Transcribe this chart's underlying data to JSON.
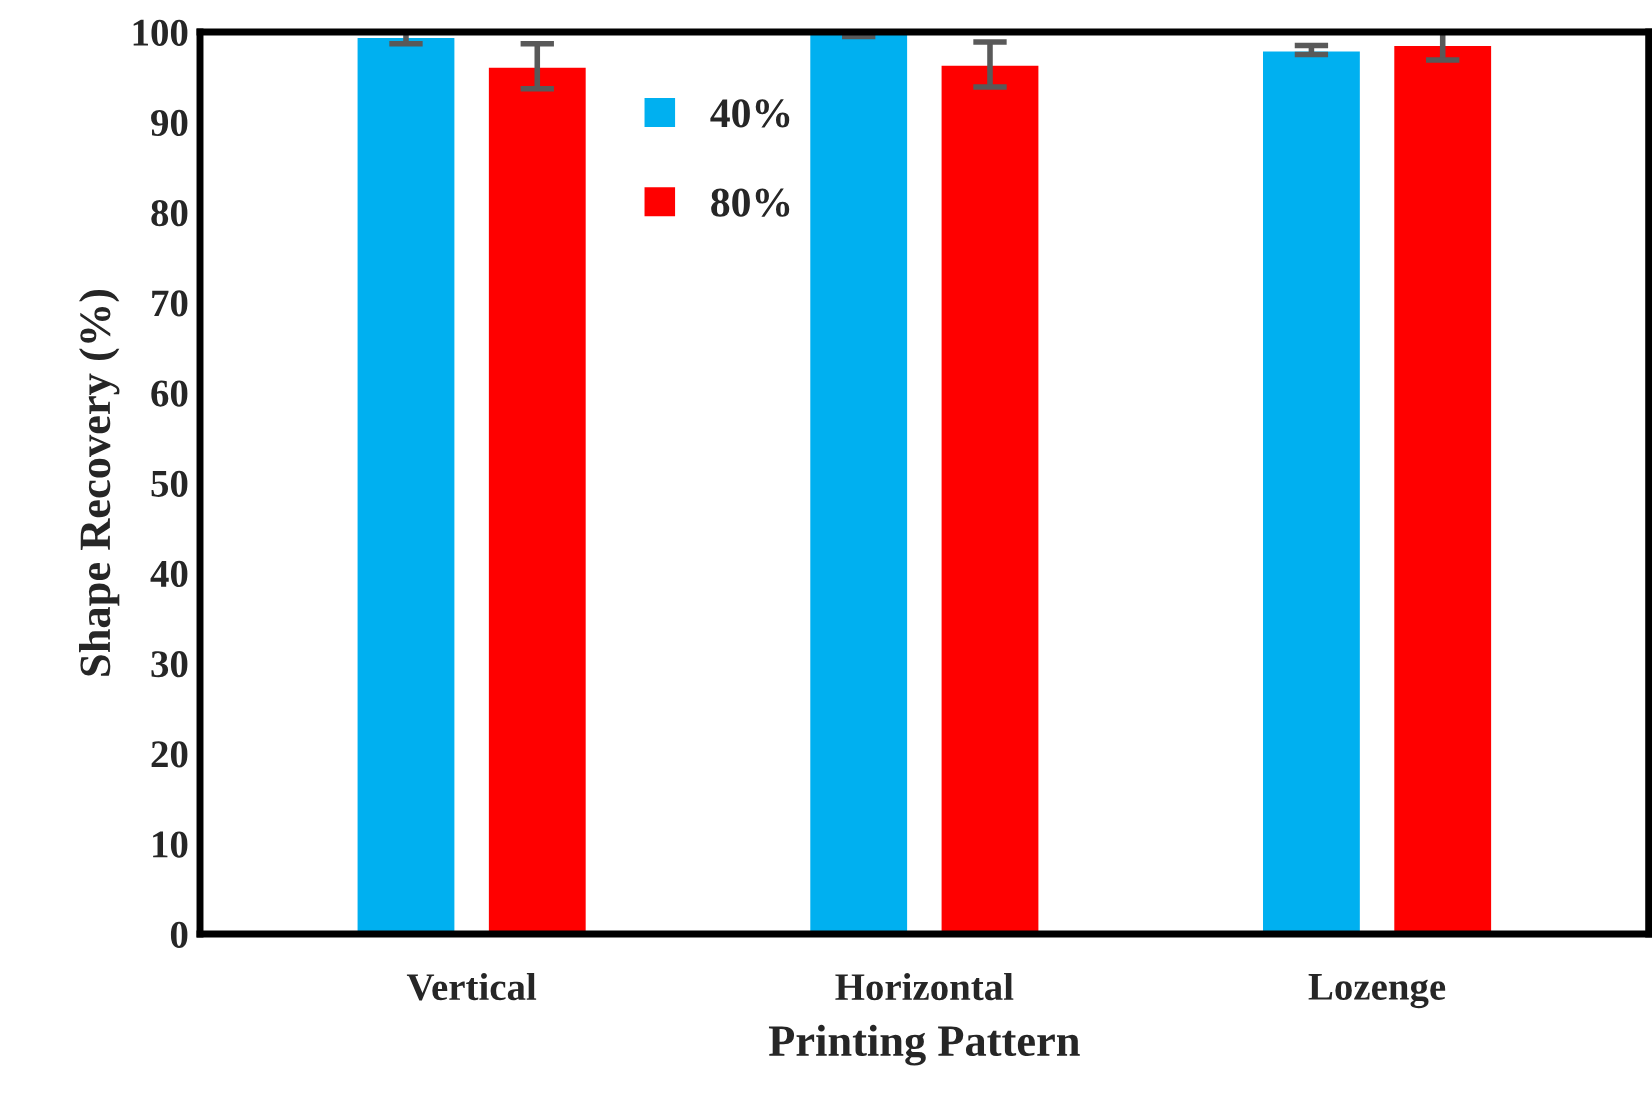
{
  "chart_data": {
    "type": "bar",
    "xlabel": "Printing Pattern",
    "ylabel": "Shape Recovery (%)",
    "categories": [
      "Vertical",
      "Horizontal",
      "Lozenge"
    ],
    "series": [
      {
        "name": "40%",
        "color": "#00b0f0",
        "values": [
          99.5,
          100,
          98
        ],
        "errors": [
          0.8,
          0.5,
          0.5
        ]
      },
      {
        "name": "80%",
        "color": "#ff0000",
        "values": [
          96.2,
          96.4,
          98.6
        ],
        "errors": [
          2.5,
          2.5,
          1.7
        ]
      }
    ],
    "ylim": [
      0,
      100
    ],
    "yticks": [
      0,
      10,
      20,
      30,
      40,
      50,
      60,
      70,
      80,
      90,
      100
    ],
    "grid": false,
    "legend": "top left"
  }
}
